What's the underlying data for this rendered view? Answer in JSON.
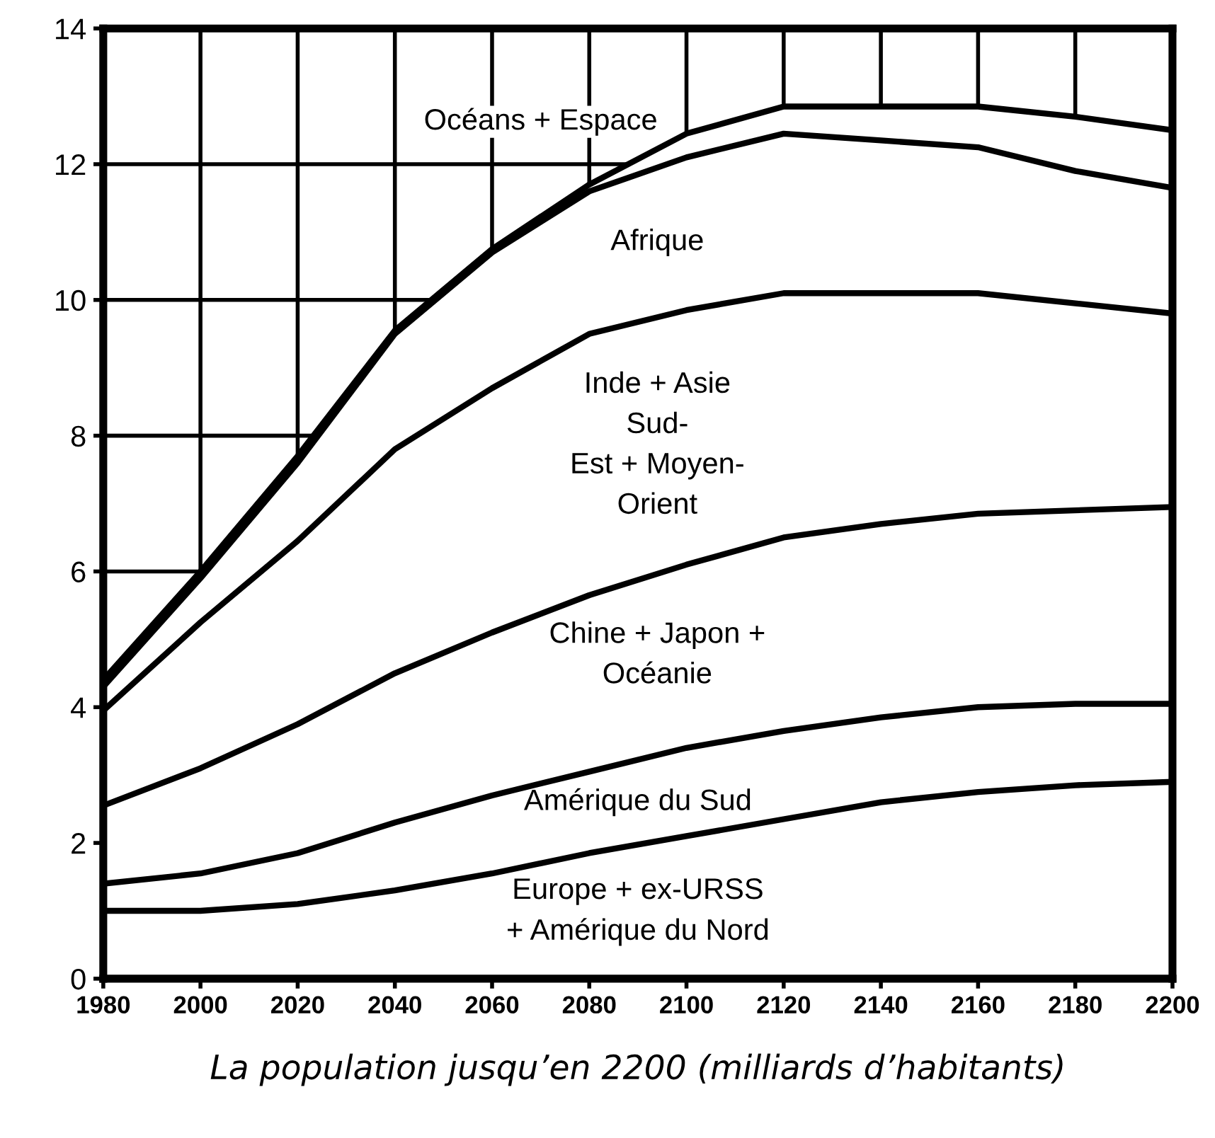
{
  "chart_data": {
    "type": "area",
    "stacked": true,
    "xlabel": "La population jusqu’en 2200 (milliards d’habitants)",
    "x": [
      1980,
      2000,
      2020,
      2040,
      2060,
      2080,
      2100,
      2120,
      2140,
      2160,
      2180,
      2200
    ],
    "series": [
      {
        "name": "Europe + ex-URSS\n+ Amérique du Nord",
        "color": "#000000",
        "values": [
          1.0,
          1.0,
          1.1,
          1.3,
          1.55,
          1.85,
          2.1,
          2.35,
          2.6,
          2.75,
          2.85,
          2.9
        ]
      },
      {
        "name": "Amérique du Sud",
        "color": "#000000",
        "values": [
          0.4,
          0.55,
          0.75,
          1.0,
          1.15,
          1.2,
          1.3,
          1.3,
          1.25,
          1.25,
          1.2,
          1.15
        ]
      },
      {
        "name": "Chine + Japon +\nOcéanie",
        "color": "#000000",
        "values": [
          1.15,
          1.55,
          1.9,
          2.2,
          2.4,
          2.6,
          2.7,
          2.85,
          2.85,
          2.85,
          2.85,
          2.9
        ]
      },
      {
        "name": "Inde + Asie\nSud-\nEst + Moyen-\nOrient",
        "color": "#000000",
        "values": [
          1.4,
          2.15,
          2.7,
          3.3,
          3.6,
          3.85,
          3.75,
          3.6,
          3.4,
          3.25,
          3.05,
          2.85
        ]
      },
      {
        "name": "Afrique",
        "color": "#000000",
        "values": [
          0.35,
          0.65,
          1.15,
          1.7,
          2.0,
          2.1,
          2.25,
          2.35,
          2.25,
          2.15,
          1.95,
          1.85
        ]
      },
      {
        "name": "Océans + Espace",
        "color": "#000000",
        "values": [
          0.1,
          0.1,
          0.1,
          0.05,
          0.05,
          0.1,
          0.35,
          0.4,
          0.5,
          0.6,
          0.8,
          0.85
        ]
      }
    ],
    "xlim": [
      1980,
      2200
    ],
    "xticks": [
      1980,
      2000,
      2020,
      2040,
      2060,
      2080,
      2100,
      2120,
      2140,
      2160,
      2180,
      2200
    ],
    "ylim": [
      0,
      14
    ],
    "yticks": [
      0,
      2,
      4,
      6,
      8,
      10,
      12,
      14
    ],
    "grid": true,
    "legend": false
  }
}
